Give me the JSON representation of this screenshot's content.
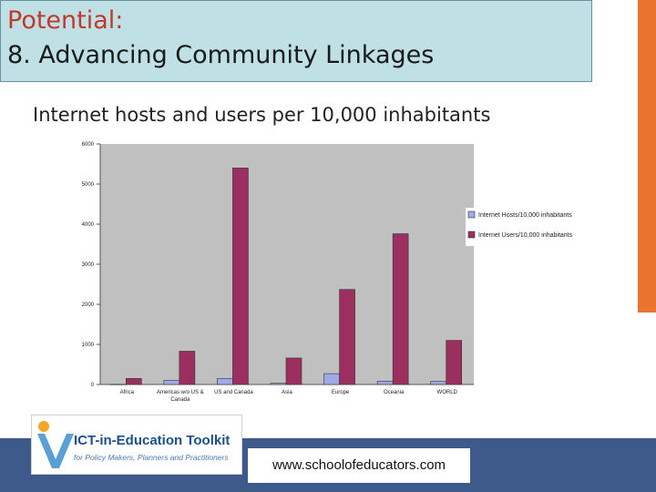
{
  "slide": {
    "title_line1": "Potential:",
    "title_line2": "8. Advancing Community Linkages",
    "chart_heading": "Internet hosts and users per 10,000 inhabitants",
    "url": "www.schoolofeducators.com"
  },
  "logo": {
    "title": "ICT-in-Education Toolkit",
    "subtitle": "for Policy Makers, Planners and Practitioners"
  },
  "colors": {
    "title_red": "#c0392b",
    "title_bg": "#bfe1e5",
    "accent_orange": "#e8742f",
    "band_blue": "#3d5a8a",
    "hosts": "#9fa8e8",
    "users": "#9b3060",
    "plot_bg": "#c0c0c0"
  },
  "chart_data": {
    "type": "bar",
    "categories": [
      "Africa",
      "Americas w/o US & Canada",
      "US and Canada",
      "Asia",
      "Europe",
      "Oceania",
      "WORLD"
    ],
    "series": [
      {
        "name": "Internet Hosts/10,000 inhabitants",
        "values": [
          5,
          100,
          150,
          30,
          270,
          80,
          75
        ]
      },
      {
        "name": "Internet Users/10,000 inhabitants",
        "values": [
          150,
          830,
          5400,
          660,
          2370,
          3760,
          1100
        ]
      }
    ],
    "ylim": [
      0,
      6000
    ],
    "yticks": [
      "0",
      "1000",
      "2000",
      "3000",
      "4000",
      "5000",
      "6000"
    ],
    "xlabel": "",
    "ylabel": "",
    "grid": false,
    "legend": "right"
  }
}
